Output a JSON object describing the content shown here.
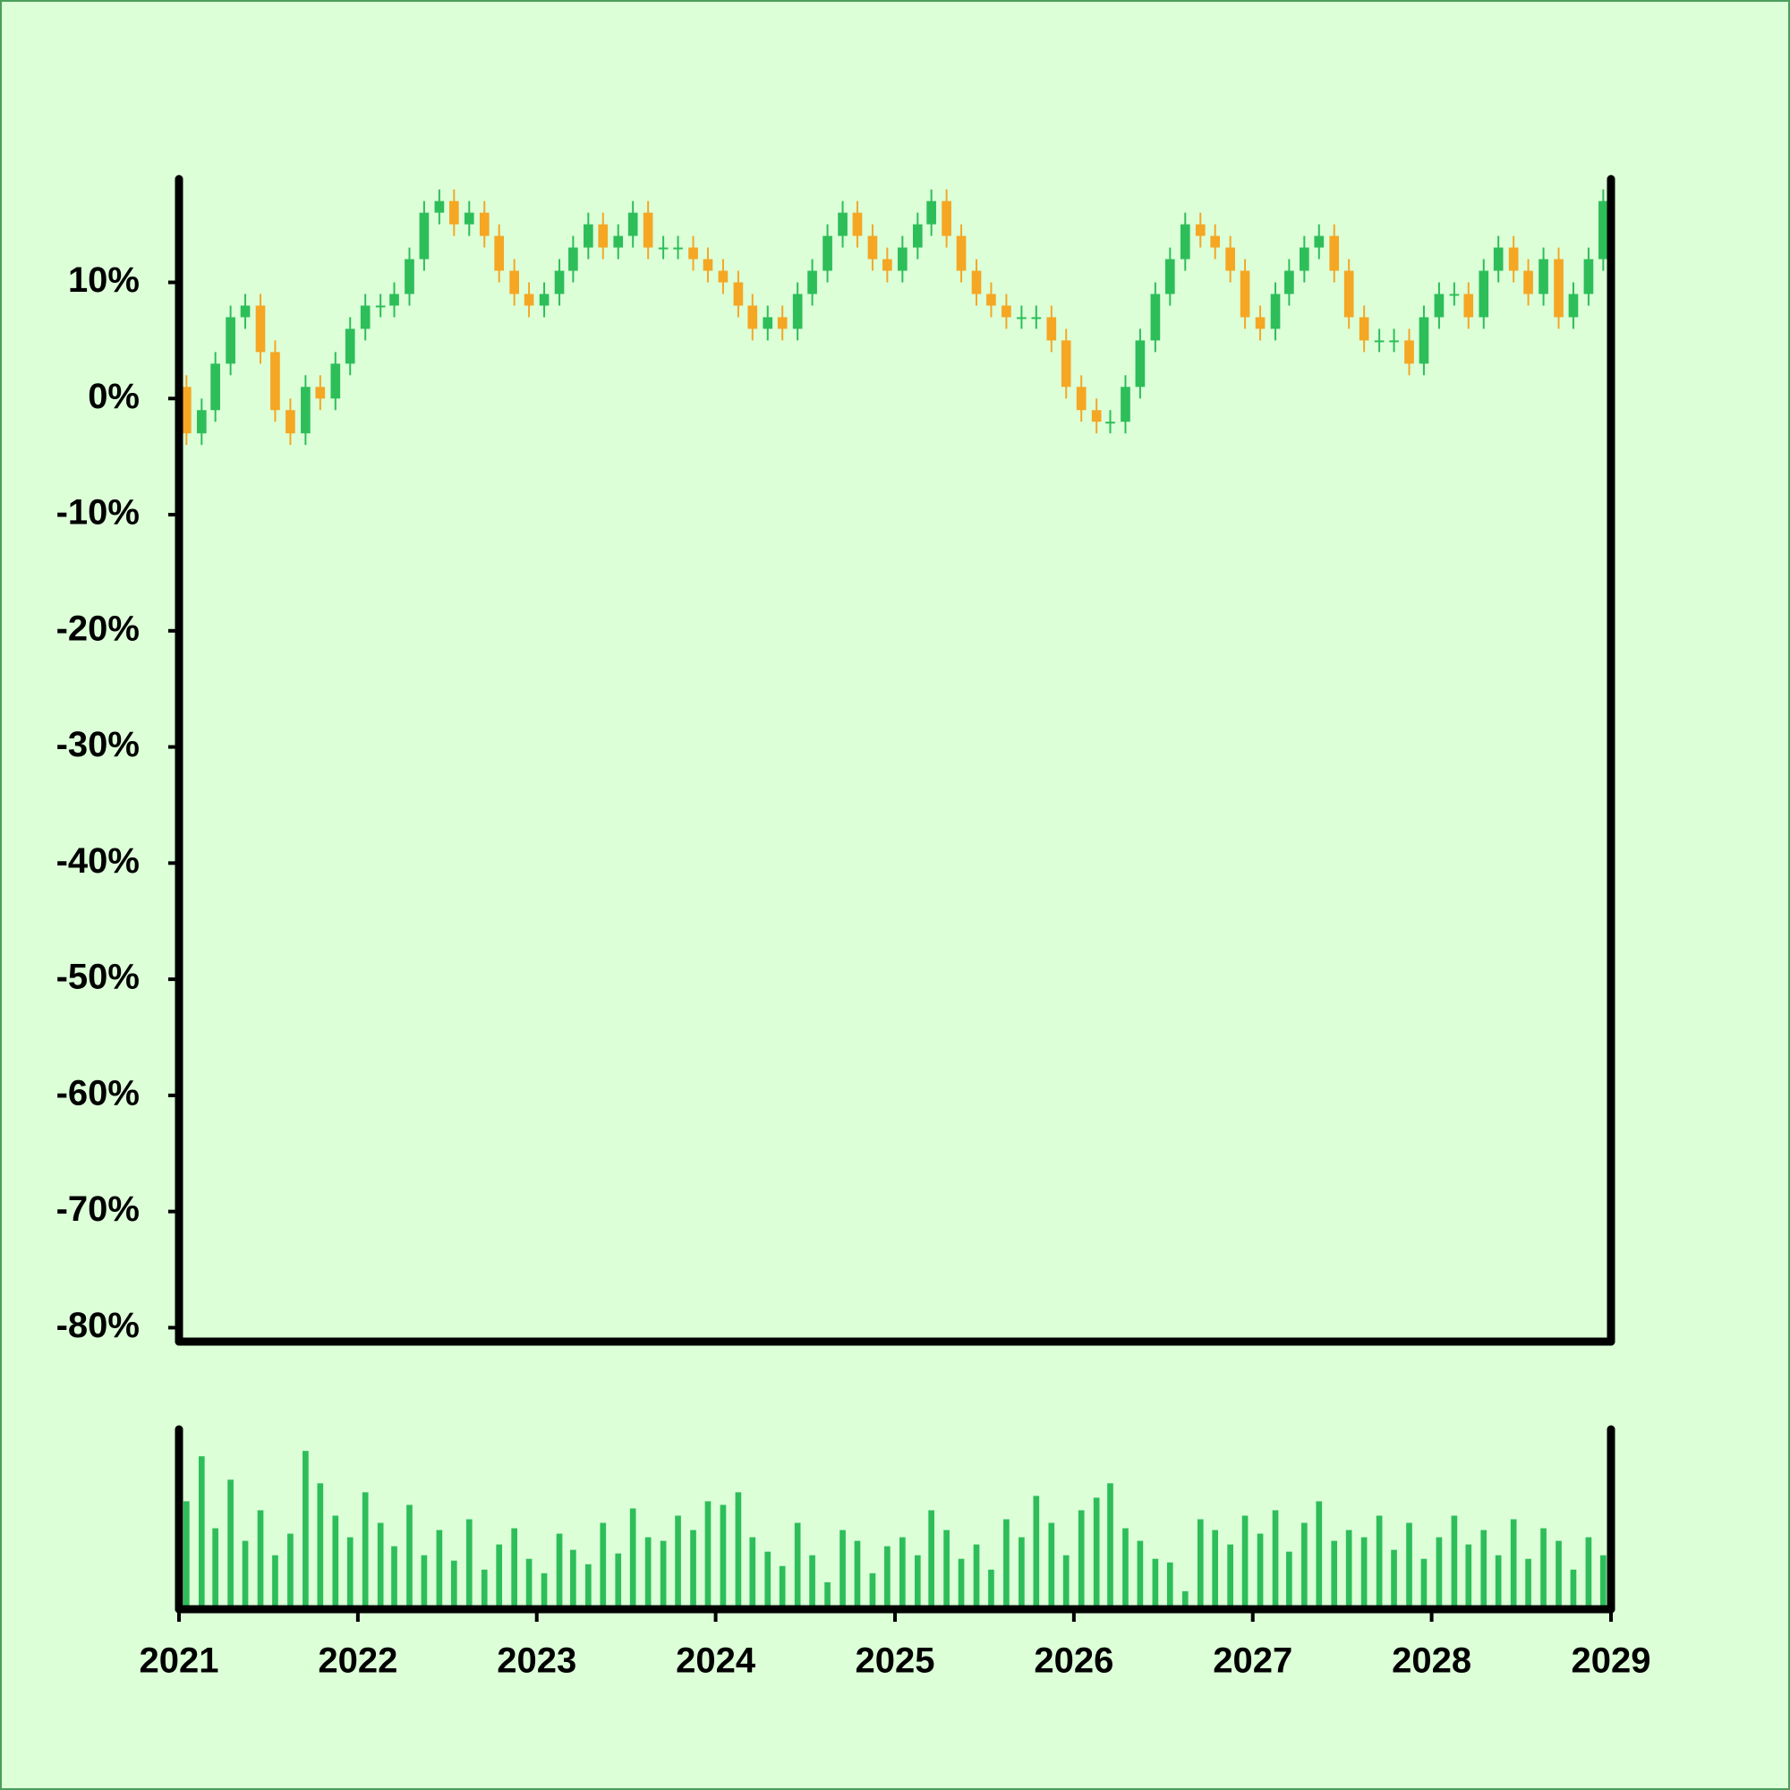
{
  "chart_data": {
    "type": "candlestick",
    "x": [
      "2021-01",
      "2021-02",
      "2021-03",
      "2021-04",
      "2021-05",
      "2021-06",
      "2021-07",
      "2021-08",
      "2021-09",
      "2021-10",
      "2021-11",
      "2021-12",
      "2022-01",
      "2022-02",
      "2022-03",
      "2022-04",
      "2022-05",
      "2022-06",
      "2022-07",
      "2022-08",
      "2022-09",
      "2022-10",
      "2022-11",
      "2022-12",
      "2023-01",
      "2023-02",
      "2023-03",
      "2023-04",
      "2023-05",
      "2023-06",
      "2023-07",
      "2023-08",
      "2023-09",
      "2023-10",
      "2023-11",
      "2023-12",
      "2024-01",
      "2024-02",
      "2024-03",
      "2024-04",
      "2024-05",
      "2024-06",
      "2024-07",
      "2024-08",
      "2024-09",
      "2024-10",
      "2024-11",
      "2024-12",
      "2025-01",
      "2025-02",
      "2025-03",
      "2025-04",
      "2025-05",
      "2025-06",
      "2025-07",
      "2025-08",
      "2025-09",
      "2025-10",
      "2025-11",
      "2025-12",
      "2026-01",
      "2026-02",
      "2026-03",
      "2026-04",
      "2026-05",
      "2026-06",
      "2026-07",
      "2026-08",
      "2026-09",
      "2026-10",
      "2026-11",
      "2026-12",
      "2027-01",
      "2027-02",
      "2027-03",
      "2027-04",
      "2027-05",
      "2027-06",
      "2027-07",
      "2027-08",
      "2027-09",
      "2027-10",
      "2027-11",
      "2027-12",
      "2028-01",
      "2028-02",
      "2028-03",
      "2028-04",
      "2028-05",
      "2028-06",
      "2028-07",
      "2028-08",
      "2028-09",
      "2028-10",
      "2028-11",
      "2028-12"
    ],
    "open": [
      1,
      -3,
      -1,
      3,
      7,
      8,
      4,
      -1,
      -3,
      1,
      0,
      3,
      6,
      8,
      8,
      9,
      12,
      16,
      17,
      15,
      16,
      14,
      11,
      9,
      8,
      9,
      11,
      13,
      15,
      13,
      14,
      16,
      13,
      13,
      13,
      12,
      11,
      10,
      8,
      6,
      7,
      6,
      9,
      11,
      14,
      16,
      14,
      12,
      11,
      13,
      15,
      17,
      14,
      11,
      9,
      8,
      7,
      7,
      7,
      5,
      1,
      -1,
      -2,
      -2,
      1,
      5,
      9,
      12,
      15,
      14,
      13,
      11,
      7,
      6,
      9,
      11,
      13,
      14,
      11,
      7,
      5,
      5,
      5,
      3,
      7,
      9,
      9,
      7,
      11,
      13,
      11,
      9,
      12,
      7,
      9,
      12
    ],
    "high": [
      2,
      0,
      4,
      8,
      9,
      9,
      5,
      0,
      2,
      2,
      4,
      7,
      9,
      9,
      10,
      13,
      17,
      18,
      18,
      17,
      17,
      15,
      12,
      10,
      10,
      12,
      14,
      16,
      16,
      15,
      17,
      17,
      14,
      14,
      14,
      13,
      12,
      11,
      9,
      8,
      8,
      10,
      12,
      15,
      17,
      17,
      15,
      13,
      14,
      16,
      18,
      18,
      15,
      12,
      10,
      9,
      8,
      8,
      8,
      6,
      2,
      0,
      -1,
      2,
      6,
      10,
      13,
      16,
      16,
      15,
      14,
      12,
      8,
      10,
      12,
      14,
      15,
      15,
      12,
      8,
      6,
      6,
      6,
      8,
      10,
      10,
      10,
      12,
      14,
      14,
      12,
      13,
      13,
      10,
      13,
      18
    ],
    "low": [
      -4,
      -4,
      -2,
      2,
      6,
      3,
      -2,
      -4,
      -4,
      -1,
      -1,
      2,
      5,
      7,
      7,
      8,
      11,
      15,
      14,
      14,
      13,
      10,
      8,
      7,
      7,
      8,
      10,
      12,
      12,
      12,
      13,
      12,
      12,
      12,
      11,
      10,
      9,
      7,
      5,
      5,
      5,
      5,
      8,
      10,
      13,
      13,
      11,
      10,
      10,
      12,
      14,
      13,
      10,
      8,
      7,
      6,
      6,
      6,
      4,
      0,
      -2,
      -3,
      -3,
      -3,
      0,
      4,
      8,
      11,
      13,
      12,
      10,
      6,
      5,
      5,
      8,
      10,
      12,
      10,
      6,
      4,
      4,
      4,
      2,
      2,
      6,
      8,
      6,
      6,
      10,
      10,
      8,
      8,
      6,
      6,
      8,
      11
    ],
    "close": [
      -3,
      -1,
      3,
      7,
      8,
      4,
      -1,
      -3,
      1,
      0,
      3,
      6,
      8,
      8,
      9,
      12,
      16,
      17,
      15,
      16,
      14,
      11,
      9,
      8,
      9,
      11,
      13,
      15,
      13,
      14,
      16,
      13,
      13,
      13,
      12,
      11,
      10,
      8,
      6,
      7,
      6,
      9,
      11,
      14,
      16,
      14,
      12,
      11,
      13,
      15,
      17,
      14,
      11,
      9,
      8,
      7,
      7,
      7,
      5,
      1,
      -1,
      -2,
      -2,
      1,
      5,
      9,
      12,
      15,
      14,
      13,
      11,
      7,
      6,
      9,
      11,
      13,
      14,
      11,
      7,
      5,
      5,
      5,
      3,
      7,
      9,
      9,
      7,
      11,
      13,
      11,
      9,
      12,
      7,
      9,
      12,
      17
    ],
    "volume": [
      60,
      85,
      45,
      72,
      38,
      55,
      30,
      42,
      88,
      70,
      52,
      40,
      65,
      48,
      35,
      58,
      30,
      44,
      27,
      50,
      22,
      36,
      45,
      28,
      20,
      42,
      33,
      25,
      48,
      31,
      56,
      40,
      38,
      52,
      44,
      60,
      58,
      65,
      40,
      32,
      24,
      48,
      30,
      15,
      44,
      38,
      20,
      35,
      40,
      30,
      55,
      44,
      28,
      36,
      22,
      50,
      40,
      63,
      48,
      30,
      55,
      62,
      70,
      45,
      38,
      28,
      26,
      10,
      50,
      44,
      36,
      52,
      42,
      55,
      32,
      48,
      60,
      38,
      44,
      40,
      52,
      33,
      48,
      28,
      40,
      52,
      36,
      44,
      30,
      50,
      28,
      45,
      38,
      22,
      40,
      30
    ],
    "up_color": "#2dbe5a",
    "down_color": "#f5a623",
    "volume_color": "#2dbe5a",
    "xlim": [
      "2021-01",
      "2029-01"
    ],
    "xticks": [
      2021,
      2022,
      2023,
      2024,
      2025,
      2026,
      2027,
      2028,
      2029
    ],
    "ylim": [
      -81.2,
      18.9
    ],
    "yticks": [
      {
        "value": 10,
        "label": "10%"
      },
      {
        "value": 0,
        "label": "0%"
      },
      {
        "value": -10,
        "label": "-10%"
      },
      {
        "value": -20,
        "label": "-20%"
      },
      {
        "value": -30,
        "label": "-30%"
      },
      {
        "value": -40,
        "label": "-40%"
      },
      {
        "value": -50,
        "label": "-50%"
      },
      {
        "value": -60,
        "label": "-60%"
      },
      {
        "value": -70,
        "label": "-70%"
      },
      {
        "value": -80,
        "label": "-80%"
      }
    ],
    "volume_ylim": [
      0,
      100
    ]
  }
}
